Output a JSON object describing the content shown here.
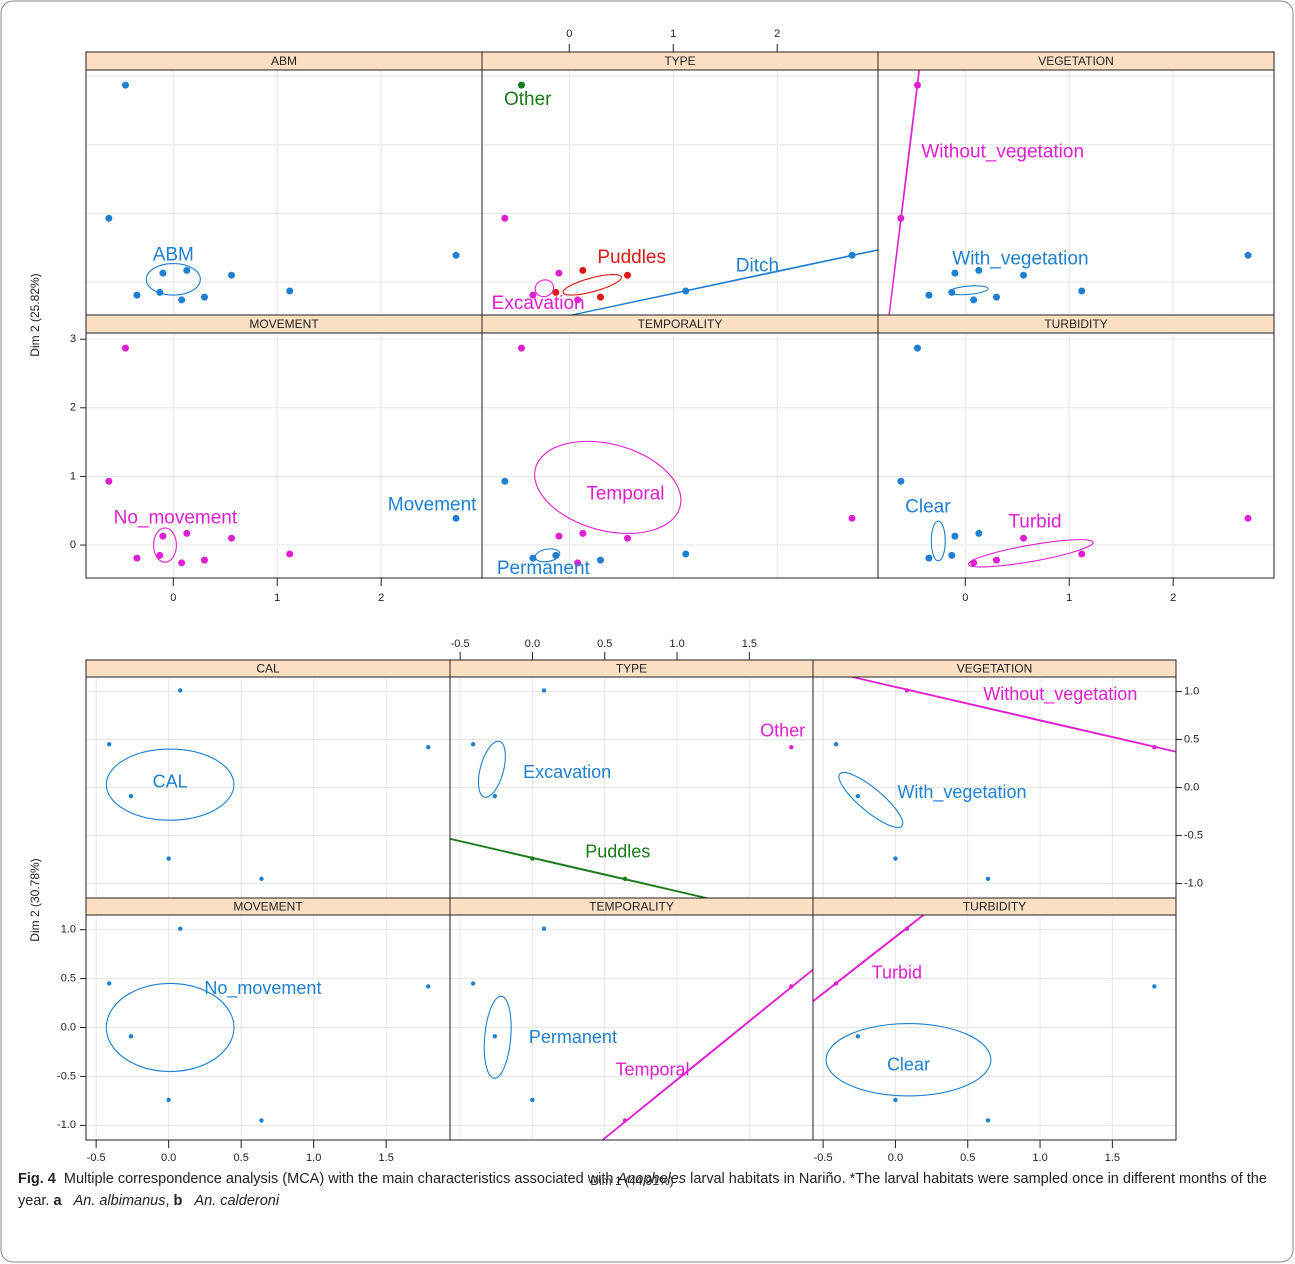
{
  "chart_data": [
    {
      "type": "scatter",
      "y_label": "Dim 2 (25.82%)",
      "xlim": [
        -0.84,
        2.97
      ],
      "ylim": [
        -0.48,
        3.09
      ],
      "xticks": [
        0,
        1,
        2
      ],
      "yticks": [
        0,
        1,
        2,
        3
      ],
      "grid": true,
      "panels": [
        {
          "title": "ABM",
          "series": [
            {
              "name": "ABM",
              "color": "#1f7fd0",
              "x": [
                -0.46,
                -0.62,
                2.72,
                -0.1,
                0.13,
                0.56,
                1.12,
                -0.35,
                -0.13,
                0.08,
                0.3
              ],
              "y": [
                2.87,
                0.93,
                0.39,
                0.13,
                0.17,
                0.1,
                -0.13,
                -0.19,
                -0.15,
                -0.26,
                -0.22
              ],
              "coord": [
                0.0,
                0.39
              ],
              "ellipse": {
                "center": [
                  0.0,
                  0.04
                ],
                "axes": [
                  0.26,
                  0.23
                ],
                "angle": 0
              }
            }
          ]
        },
        {
          "title": "TYPE",
          "series": [
            {
              "name": "Other",
              "color": "#1a7a1a",
              "x": [
                -0.46
              ],
              "y": [
                2.87
              ],
              "coord": [
                -0.4,
                2.65
              ]
            },
            {
              "name": "Puddles",
              "color": "#e01818",
              "x": [
                0.13,
                0.56,
                -0.13,
                0.3
              ],
              "y": [
                0.17,
                0.1,
                -0.15,
                -0.22
              ],
              "coord": [
                0.6,
                0.35
              ],
              "ellipse": {
                "center": [
                  0.22,
                  -0.04
                ],
                "axes": [
                  0.29,
                  0.1
                ],
                "angle": -15
              }
            },
            {
              "name": "Excavation",
              "color": "#e020d0",
              "x": [
                -0.62,
                -0.1,
                -0.35,
                0.08
              ],
              "y": [
                0.93,
                0.13,
                -0.19,
                -0.26
              ],
              "coord": [
                -0.3,
                -0.32
              ],
              "ellipse": {
                "center": [
                  -0.24,
                  -0.09
                ],
                "axes": [
                  0.09,
                  0.12
                ],
                "angle": -20
              }
            },
            {
              "name": "Ditch",
              "color": "#1f7fd0",
              "x": [
                2.72,
                1.12
              ],
              "y": [
                0.39,
                -0.13
              ],
              "coord": [
                1.81,
                0.23
              ],
              "ellipse": {
                "center": [
                  1.92,
                  0.13
                ],
                "axes": [
                  3,
                  0.005
                ],
                "angle": -12
              }
            }
          ]
        },
        {
          "title": "VEGETATION",
          "series": [
            {
              "name": "Without_vegetation",
              "color": "#e020d0",
              "x": [
                -0.46,
                -0.62
              ],
              "y": [
                2.87,
                0.93
              ],
              "coord": [
                0.36,
                1.89
              ],
              "ellipse": {
                "center": [
                  -0.54,
                  1.9
                ],
                "axes": [
                  3,
                  0.005
                ],
                "angle": -83
              }
            },
            {
              "name": "With_vegetation",
              "color": "#1f7fd0",
              "x": [
                2.72,
                -0.1,
                0.13,
                0.56,
                1.12,
                -0.35,
                -0.13,
                0.08,
                0.3
              ],
              "y": [
                0.39,
                0.13,
                0.17,
                0.1,
                -0.13,
                -0.19,
                -0.15,
                -0.26,
                -0.22
              ],
              "coord": [
                0.53,
                0.33
              ],
              "ellipse": {
                "center": [
                  0.03,
                  -0.12
                ],
                "axes": [
                  0.19,
                  0.06
                ],
                "angle": -5
              }
            }
          ]
        },
        {
          "title": "MOVEMENT",
          "series": [
            {
              "name": "No_movement",
              "color": "#e020d0",
              "x": [
                -0.46,
                -0.62,
                -0.1,
                0.13,
                0.56,
                1.12,
                -0.35,
                -0.13,
                0.08,
                0.3
              ],
              "y": [
                2.87,
                0.93,
                0.13,
                0.17,
                0.1,
                -0.13,
                -0.19,
                -0.15,
                -0.26,
                -0.22
              ],
              "coord": [
                0.02,
                0.39
              ],
              "ellipse": {
                "center": [
                  -0.08,
                  0.0
                ],
                "axes": [
                  0.11,
                  0.25
                ],
                "angle": 0
              }
            },
            {
              "name": "Movement",
              "color": "#1f7fd0",
              "x": [
                2.72
              ],
              "y": [
                0.39
              ],
              "coord": [
                2.49,
                0.58
              ]
            }
          ]
        },
        {
          "title": "TEMPORALITY",
          "series": [
            {
              "name": "Temporal",
              "color": "#e020d0",
              "x": [
                -0.46,
                2.72,
                -0.1,
                0.13,
                0.56,
                0.08
              ],
              "y": [
                2.87,
                0.39,
                0.13,
                0.17,
                0.1,
                -0.26
              ],
              "coord": [
                0.54,
                0.74
              ],
              "ellipse": {
                "center": [
                  0.37,
                  0.84
                ],
                "axes": [
                  0.72,
                  0.63
                ],
                "angle": 15
              }
            },
            {
              "name": "Permanent",
              "color": "#1f7fd0",
              "x": [
                -0.62,
                1.12,
                -0.35,
                -0.13,
                0.3
              ],
              "y": [
                0.93,
                -0.13,
                -0.19,
                -0.15,
                -0.22
              ],
              "coord": [
                -0.25,
                -0.35
              ],
              "ellipse": {
                "center": [
                  -0.21,
                  -0.15
                ],
                "axes": [
                  0.12,
                  0.09
                ],
                "angle": -10
              }
            }
          ]
        },
        {
          "title": "TURBIDITY",
          "series": [
            {
              "name": "Clear",
              "color": "#1f7fd0",
              "x": [
                -0.46,
                -0.62,
                -0.1,
                0.13,
                -0.35,
                -0.13
              ],
              "y": [
                2.87,
                0.93,
                0.13,
                0.17,
                -0.19,
                -0.15
              ],
              "coord": [
                -0.36,
                0.55
              ],
              "ellipse": {
                "center": [
                  -0.26,
                  0.06
                ],
                "axes": [
                  0.067,
                  0.29
                ],
                "angle": 0
              }
            },
            {
              "name": "Turbid",
              "color": "#e020d0",
              "x": [
                2.72,
                0.56,
                1.12,
                0.08,
                0.3
              ],
              "y": [
                0.39,
                0.1,
                -0.13,
                -0.26,
                -0.22
              ],
              "coord": [
                0.67,
                0.33
              ],
              "ellipse": {
                "center": [
                  0.63,
                  -0.12
                ],
                "axes": [
                  0.61,
                  0.12
                ],
                "angle": -10
              }
            }
          ]
        }
      ]
    },
    {
      "type": "scatter",
      "x_label": "Dim 1 (44.91%)",
      "y_label": "Dim 2 (30.78%)",
      "xlim": [
        -0.57,
        1.94
      ],
      "ylim": [
        -1.15,
        1.15
      ],
      "xticks": [
        -0.5,
        {
          "value": 0,
          "label": "0.0"
        },
        0.5,
        {
          "value": 1,
          "label": "1.0"
        },
        1.5
      ],
      "yticks": [
        {
          "value": -1,
          "label": "-1.0"
        },
        -0.5,
        {
          "value": 0,
          "label": "0.0"
        },
        0.5,
        {
          "value": 1,
          "label": "1.0"
        }
      ],
      "grid": true,
      "panels": [
        {
          "title": "CAL",
          "series": [
            {
              "name": "CAL",
              "color": "#1f7fd0",
              "x": [
                0.08,
                -0.41,
                1.79,
                -0.26,
                0.0,
                0.64
              ],
              "y": [
                1.01,
                0.45,
                0.42,
                -0.09,
                -0.74,
                -0.95
              ],
              "coord": [
                0.01,
                0.05
              ],
              "ellipse": {
                "center": [
                  0.01,
                  0.03
                ],
                "axes": [
                  0.44,
                  0.37
                ],
                "angle": 0
              }
            }
          ]
        },
        {
          "title": "TYPE",
          "series": [
            {
              "name": "Excavation",
              "color": "#1f7fd0",
              "x": [
                0.08,
                -0.41,
                -0.26
              ],
              "y": [
                1.01,
                0.45,
                -0.09
              ],
              "coord": [
                0.24,
                0.15
              ],
              "ellipse": {
                "center": [
                  -0.28,
                  0.19
                ],
                "axes": [
                  0.08,
                  0.3
                ],
                "angle": 15
              }
            },
            {
              "name": "Other",
              "color": "#e020d0",
              "x": [
                1.79
              ],
              "y": [
                0.42
              ],
              "coord": [
                1.73,
                0.58
              ]
            },
            {
              "name": "Puddles",
              "color": "#1a7a1a",
              "x": [
                0.0,
                0.64
              ],
              "y": [
                -0.74,
                -0.95
              ],
              "coord": [
                0.59,
                -0.68
              ],
              "ellipse": {
                "center": [
                  0.31,
                  -0.84
                ],
                "axes": [
                  3,
                  0.005
                ],
                "angle": 13
              }
            }
          ]
        },
        {
          "title": "VEGETATION",
          "series": [
            {
              "name": "Without_vegetation",
              "color": "#e020d0",
              "x": [
                0.08,
                1.79
              ],
              "y": [
                1.01,
                0.42
              ],
              "coord": [
                1.14,
                0.96
              ],
              "ellipse": {
                "center": [
                  0.94,
                  0.72
                ],
                "axes": [
                  3,
                  0.005
                ],
                "angle": 13
              }
            },
            {
              "name": "With_vegetation",
              "color": "#1f7fd0",
              "x": [
                -0.41,
                -0.26,
                0.0,
                0.64
              ],
              "y": [
                0.45,
                -0.09,
                -0.74,
                -0.95
              ],
              "coord": [
                0.46,
                -0.06
              ],
              "ellipse": {
                "center": [
                  -0.17,
                  -0.13
                ],
                "axes": [
                  0.28,
                  0.12
                ],
                "angle": 40
              }
            }
          ]
        },
        {
          "title": "MOVEMENT",
          "series": [
            {
              "name": "No_movement",
              "color": "#1f7fd0",
              "x": [
                0.08,
                -0.41,
                1.79,
                -0.26,
                0.0,
                0.64
              ],
              "y": [
                1.01,
                0.45,
                0.42,
                -0.09,
                -0.74,
                -0.95
              ],
              "coord": [
                0.65,
                0.39
              ],
              "ellipse": {
                "center": [
                  0.01,
                  0.0
                ],
                "axes": [
                  0.44,
                  0.45
                ],
                "angle": 0
              }
            }
          ]
        },
        {
          "title": "TEMPORALITY",
          "series": [
            {
              "name": "Permanent",
              "color": "#1f7fd0",
              "x": [
                0.08,
                -0.41,
                -0.26,
                0.0
              ],
              "y": [
                1.01,
                0.45,
                -0.09,
                -0.74
              ],
              "coord": [
                0.28,
                -0.11
              ],
              "ellipse": {
                "center": [
                  -0.24,
                  -0.1
                ],
                "axes": [
                  0.09,
                  0.42
                ],
                "angle": 5
              }
            },
            {
              "name": "Temporal",
              "color": "#e020d0",
              "x": [
                1.79,
                0.64
              ],
              "y": [
                0.42,
                -0.95
              ],
              "coord": [
                0.83,
                -0.44
              ],
              "ellipse": {
                "center": [
                  1.22,
                  -0.27
                ],
                "axes": [
                  3,
                  0.005
                ],
                "angle": -39
              }
            }
          ]
        },
        {
          "title": "TURBIDITY",
          "series": [
            {
              "name": "Turbid",
              "color": "#e020d0",
              "x": [
                0.08,
                -0.41
              ],
              "y": [
                1.01,
                0.45
              ],
              "coord": [
                0.01,
                0.55
              ],
              "ellipse": {
                "center": [
                  -0.17,
                  0.73
                ],
                "axes": [
                  3,
                  0.005
                ],
                "angle": -38
              }
            },
            {
              "name": "Clear",
              "color": "#1f7fd0",
              "x": [
                1.79,
                -0.26,
                0.0,
                0.64
              ],
              "y": [
                0.42,
                -0.09,
                -0.74,
                -0.95
              ],
              "coord": [
                0.09,
                -0.39
              ],
              "ellipse": {
                "center": [
                  0.09,
                  -0.33
                ],
                "axes": [
                  0.57,
                  0.37
                ],
                "angle": 0
              }
            }
          ]
        }
      ]
    }
  ],
  "caption": {
    "label": "Fig. 4",
    "parts": [
      {
        "text": "Multiple correspondence analysis (MCA) with the main characteristics associated with "
      },
      {
        "text": "Anopheles",
        "italic": true
      },
      {
        "text": " larval habitats in Nariño. *The larval habitats were sampled once in different months of the year. "
      },
      {
        "text": "a",
        "bold": true
      },
      {
        "text": " "
      },
      {
        "text": "An. albimanus",
        "italic": true
      },
      {
        "text": ", "
      },
      {
        "text": "b",
        "bold": true
      },
      {
        "text": " "
      },
      {
        "text": "An. calderoni",
        "italic": true
      }
    ]
  }
}
